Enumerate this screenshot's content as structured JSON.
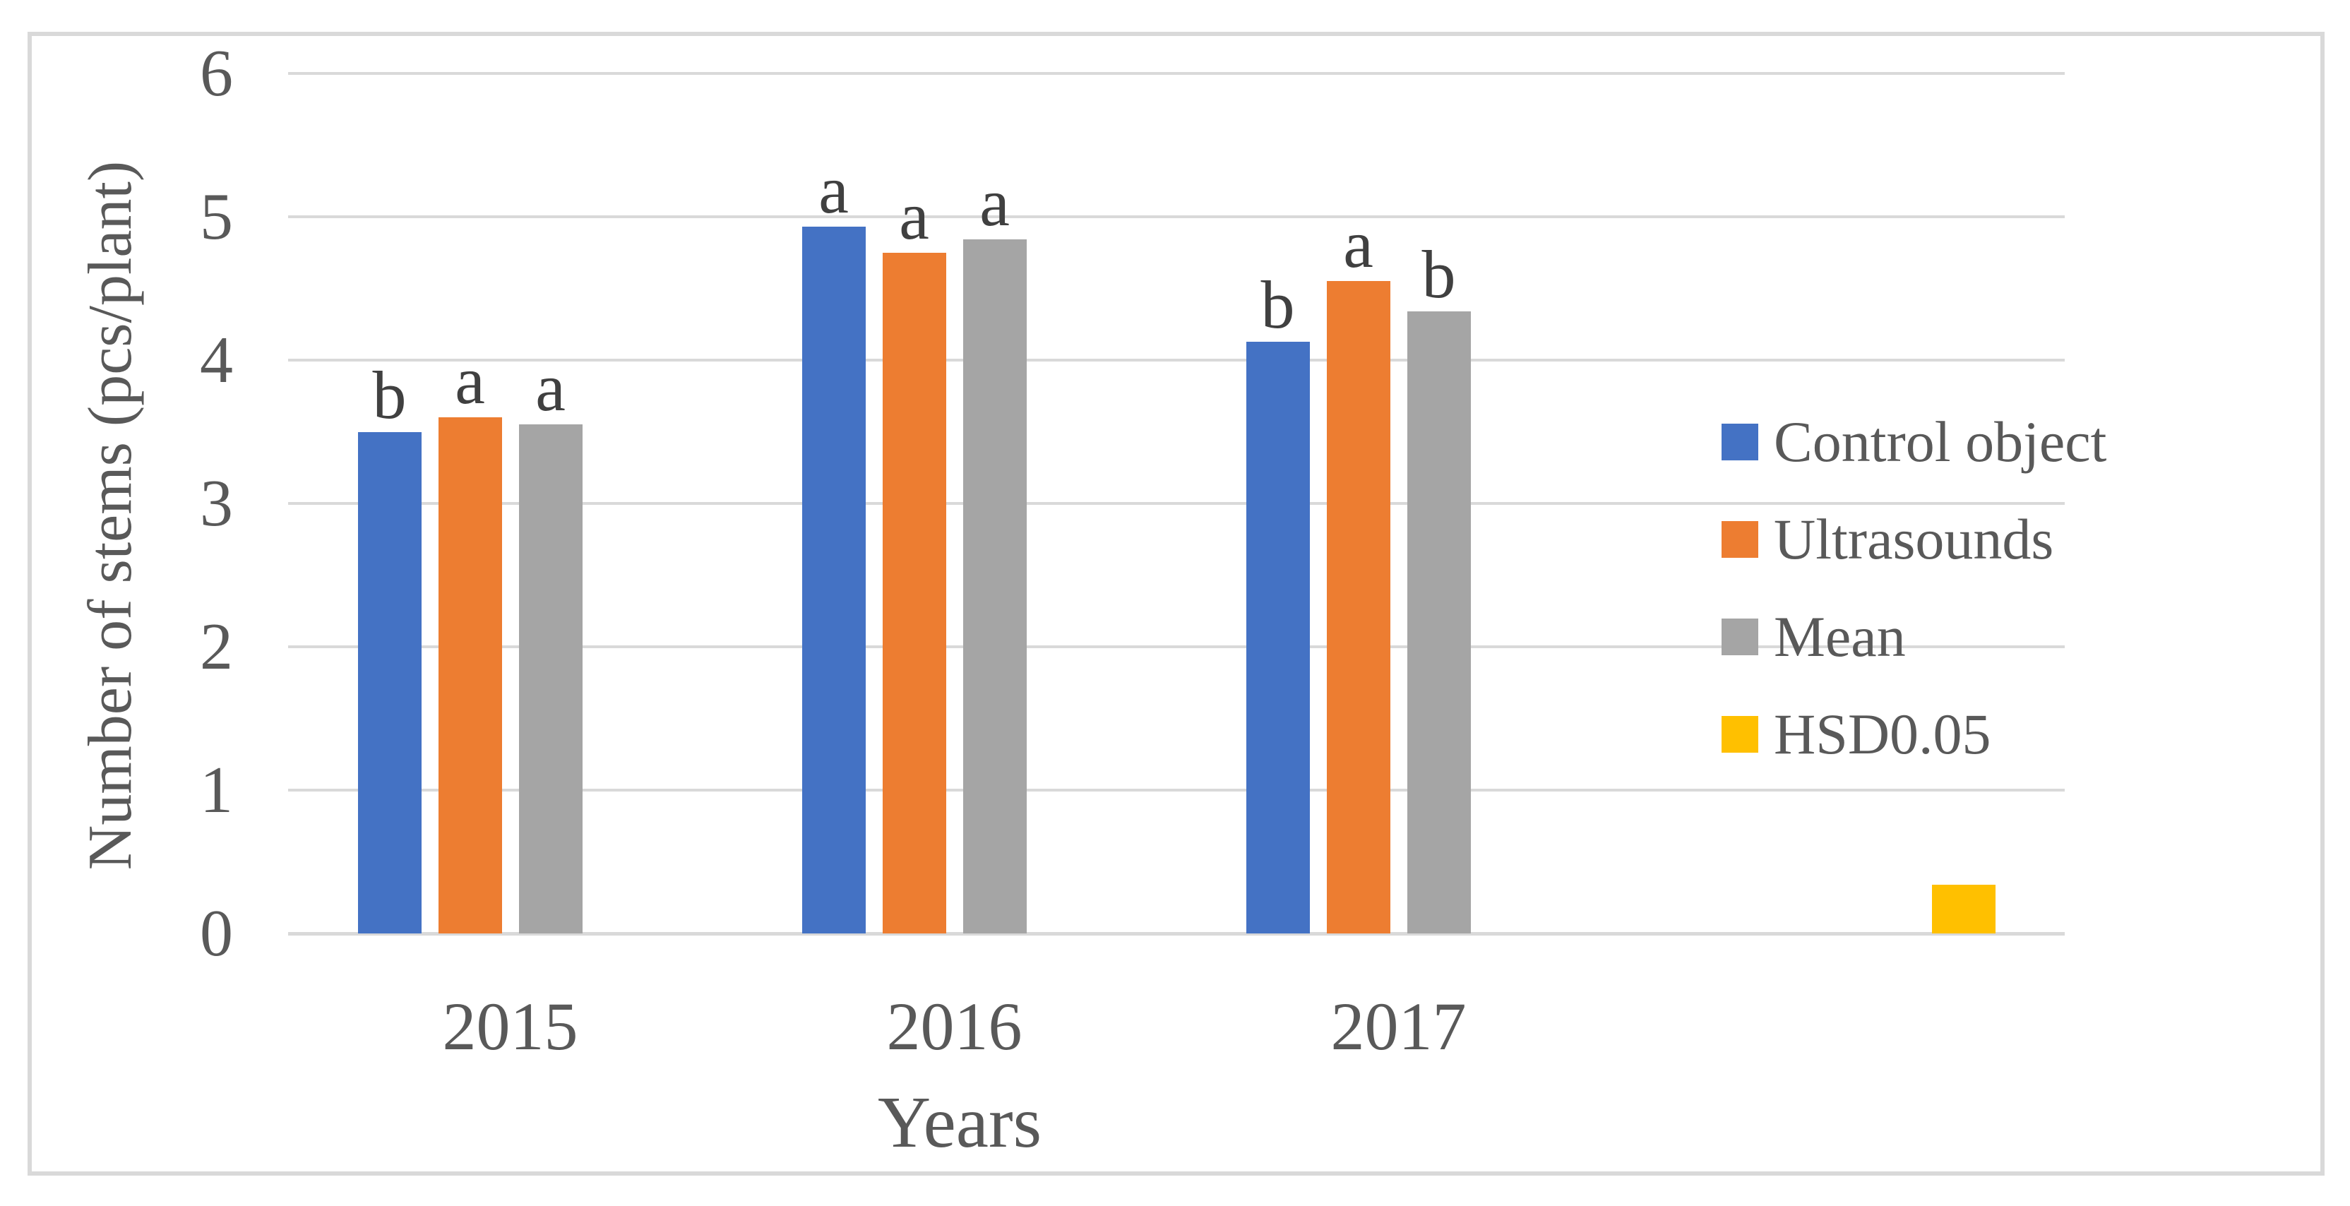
{
  "colors": {
    "background": "#FFFFFF",
    "frame": "#D9D9D9",
    "grid": "#D9D9D9",
    "axis_line": "#D9D9D9",
    "text": "#595959",
    "letters": "#404040"
  },
  "chart_data": {
    "type": "bar",
    "title": "",
    "xlabel": "Years",
    "ylabel": "Number of stems (pcs/plant)",
    "ylim": [
      0,
      6
    ],
    "yticks": [
      0,
      1,
      2,
      3,
      4,
      5,
      6
    ],
    "categories": [
      "2015",
      "2016",
      "2017",
      ""
    ],
    "series": [
      {
        "name": "Control object",
        "color": "#4472C4",
        "values": [
          3.5,
          4.93,
          4.13,
          null
        ],
        "letters": [
          "b",
          "a",
          "b",
          ""
        ]
      },
      {
        "name": "Ultrasounds",
        "color": "#ED7D31",
        "values": [
          3.6,
          4.75,
          4.55,
          null
        ],
        "letters": [
          "a",
          "a",
          "a",
          ""
        ]
      },
      {
        "name": "Mean",
        "color": "#A5A5A5",
        "values": [
          3.55,
          4.84,
          4.34,
          null
        ],
        "letters": [
          "a",
          "a",
          "b",
          ""
        ]
      },
      {
        "name": "HSD0.05",
        "color": "#FFC000",
        "values": [
          null,
          null,
          null,
          0.34
        ],
        "letters": [
          "",
          "",
          "",
          ""
        ]
      }
    ],
    "legend_position": "right",
    "grid": true
  }
}
